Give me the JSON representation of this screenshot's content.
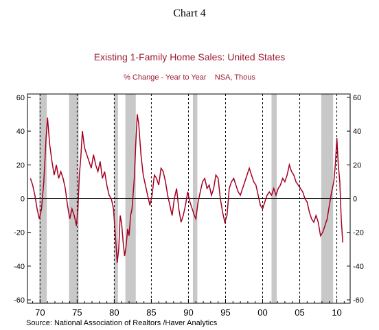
{
  "chart_data": {
    "type": "line",
    "chart_label": "Chart 4",
    "title": "Existing 1-Family Home Sales: United States",
    "subtitle": "% Change - Year to Year    NSA, Thous",
    "source": "Source:  National Association of Realtors /Haver Analytics",
    "ylim": [
      -62,
      62
    ],
    "xlim": [
      1968.3,
      2011.8
    ],
    "y_ticks": [
      -60,
      -40,
      -20,
      0,
      20,
      40,
      60
    ],
    "y_tick_labels": [
      "-60",
      "-40",
      "-20",
      "0",
      "20",
      "40",
      "60"
    ],
    "x_ticks": [
      1970,
      1975,
      1980,
      1985,
      1990,
      1995,
      2000,
      2005,
      2010
    ],
    "x_tick_labels": [
      "70",
      "75",
      "80",
      "85",
      "90",
      "95",
      "00",
      "05",
      "10"
    ],
    "recessions": [
      [
        1969.9,
        1970.9
      ],
      [
        1973.9,
        1975.2
      ],
      [
        1980.0,
        1980.5
      ],
      [
        1981.5,
        1982.9
      ],
      [
        1990.6,
        1991.2
      ],
      [
        2001.2,
        2001.9
      ],
      [
        2007.9,
        2009.5
      ]
    ],
    "colors": {
      "line": "#A50021",
      "title": "#9B1B30",
      "recession": "#C8C8C8",
      "axis": "#000000"
    },
    "series": [
      {
        "values": [
          [
            1968.7,
            12
          ],
          [
            1969.0,
            8
          ],
          [
            1969.3,
            2
          ],
          [
            1969.6,
            -6
          ],
          [
            1969.9,
            -12
          ],
          [
            1970.2,
            -6
          ],
          [
            1970.5,
            10
          ],
          [
            1970.8,
            35
          ],
          [
            1971.0,
            48
          ],
          [
            1971.3,
            32
          ],
          [
            1971.6,
            22
          ],
          [
            1971.9,
            14
          ],
          [
            1972.2,
            20
          ],
          [
            1972.5,
            12
          ],
          [
            1972.8,
            16
          ],
          [
            1973.1,
            12
          ],
          [
            1973.4,
            6
          ],
          [
            1973.7,
            -4
          ],
          [
            1974.0,
            -12
          ],
          [
            1974.3,
            -6
          ],
          [
            1974.6,
            -10
          ],
          [
            1974.9,
            -16
          ],
          [
            1975.1,
            -6
          ],
          [
            1975.3,
            14
          ],
          [
            1975.5,
            25
          ],
          [
            1975.7,
            40
          ],
          [
            1976.0,
            30
          ],
          [
            1976.3,
            26
          ],
          [
            1976.6,
            22
          ],
          [
            1976.9,
            18
          ],
          [
            1977.2,
            26
          ],
          [
            1977.5,
            20
          ],
          [
            1977.8,
            16
          ],
          [
            1978.1,
            22
          ],
          [
            1978.4,
            12
          ],
          [
            1978.7,
            16
          ],
          [
            1979.0,
            8
          ],
          [
            1979.3,
            2
          ],
          [
            1979.6,
            0
          ],
          [
            1979.9,
            -6
          ],
          [
            1980.2,
            -25
          ],
          [
            1980.4,
            -38
          ],
          [
            1980.6,
            -30
          ],
          [
            1980.8,
            -10
          ],
          [
            1981.0,
            -15
          ],
          [
            1981.2,
            -26
          ],
          [
            1981.4,
            -34
          ],
          [
            1981.6,
            -28
          ],
          [
            1981.8,
            -18
          ],
          [
            1982.0,
            -22
          ],
          [
            1982.2,
            -10
          ],
          [
            1982.4,
            -6
          ],
          [
            1982.7,
            12
          ],
          [
            1982.9,
            32
          ],
          [
            1983.1,
            50
          ],
          [
            1983.3,
            44
          ],
          [
            1983.6,
            26
          ],
          [
            1983.9,
            14
          ],
          [
            1984.2,
            8
          ],
          [
            1984.5,
            2
          ],
          [
            1984.8,
            -4
          ],
          [
            1985.1,
            2
          ],
          [
            1985.4,
            14
          ],
          [
            1985.7,
            12
          ],
          [
            1986.0,
            8
          ],
          [
            1986.3,
            18
          ],
          [
            1986.6,
            16
          ],
          [
            1986.9,
            10
          ],
          [
            1987.2,
            2
          ],
          [
            1987.5,
            -4
          ],
          [
            1987.8,
            -10
          ],
          [
            1988.1,
            0
          ],
          [
            1988.4,
            6
          ],
          [
            1988.7,
            -6
          ],
          [
            1989.0,
            -14
          ],
          [
            1989.3,
            -10
          ],
          [
            1989.6,
            -4
          ],
          [
            1989.9,
            4
          ],
          [
            1990.2,
            -2
          ],
          [
            1990.5,
            -6
          ],
          [
            1990.8,
            -10
          ],
          [
            1991.0,
            -12
          ],
          [
            1991.3,
            -2
          ],
          [
            1991.6,
            4
          ],
          [
            1991.9,
            10
          ],
          [
            1992.2,
            12
          ],
          [
            1992.5,
            6
          ],
          [
            1992.8,
            8
          ],
          [
            1993.1,
            2
          ],
          [
            1993.4,
            6
          ],
          [
            1993.7,
            14
          ],
          [
            1994.0,
            12
          ],
          [
            1994.3,
            0
          ],
          [
            1994.6,
            -8
          ],
          [
            1994.9,
            -14
          ],
          [
            1995.2,
            -10
          ],
          [
            1995.5,
            6
          ],
          [
            1995.8,
            10
          ],
          [
            1996.1,
            12
          ],
          [
            1996.4,
            8
          ],
          [
            1996.7,
            4
          ],
          [
            1997.0,
            2
          ],
          [
            1997.3,
            6
          ],
          [
            1997.6,
            10
          ],
          [
            1997.9,
            14
          ],
          [
            1998.2,
            18
          ],
          [
            1998.5,
            14
          ],
          [
            1998.8,
            10
          ],
          [
            1999.1,
            8
          ],
          [
            1999.4,
            2
          ],
          [
            1999.7,
            -4
          ],
          [
            2000.0,
            -6
          ],
          [
            2000.3,
            -2
          ],
          [
            2000.6,
            2
          ],
          [
            2000.9,
            4
          ],
          [
            2001.2,
            2
          ],
          [
            2001.5,
            6
          ],
          [
            2001.8,
            2
          ],
          [
            2002.1,
            6
          ],
          [
            2002.4,
            8
          ],
          [
            2002.7,
            12
          ],
          [
            2003.0,
            10
          ],
          [
            2003.3,
            14
          ],
          [
            2003.6,
            20
          ],
          [
            2003.9,
            16
          ],
          [
            2004.2,
            14
          ],
          [
            2004.5,
            10
          ],
          [
            2004.8,
            8
          ],
          [
            2005.1,
            6
          ],
          [
            2005.4,
            4
          ],
          [
            2005.7,
            0
          ],
          [
            2006.0,
            -2
          ],
          [
            2006.3,
            -8
          ],
          [
            2006.6,
            -12
          ],
          [
            2006.9,
            -14
          ],
          [
            2007.2,
            -10
          ],
          [
            2007.5,
            -14
          ],
          [
            2007.8,
            -22
          ],
          [
            2008.1,
            -20
          ],
          [
            2008.4,
            -16
          ],
          [
            2008.7,
            -12
          ],
          [
            2009.0,
            -4
          ],
          [
            2009.3,
            4
          ],
          [
            2009.6,
            10
          ],
          [
            2009.8,
            20
          ],
          [
            2010.0,
            36
          ],
          [
            2010.2,
            20
          ],
          [
            2010.4,
            10
          ],
          [
            2010.6,
            -12
          ],
          [
            2010.8,
            -26
          ]
        ]
      }
    ]
  }
}
